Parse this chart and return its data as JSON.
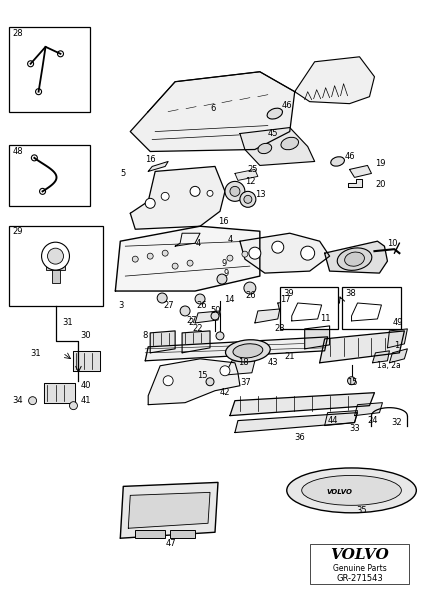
{
  "bg_color": "#ffffff",
  "fig_width": 4.25,
  "fig_height": 6.01,
  "dpi": 100,
  "volvo_text": "VOLVO",
  "genuine_parts": "Genuine Parts",
  "part_number": "GR-271543",
  "lw": 0.7,
  "label_fs": 6.0
}
